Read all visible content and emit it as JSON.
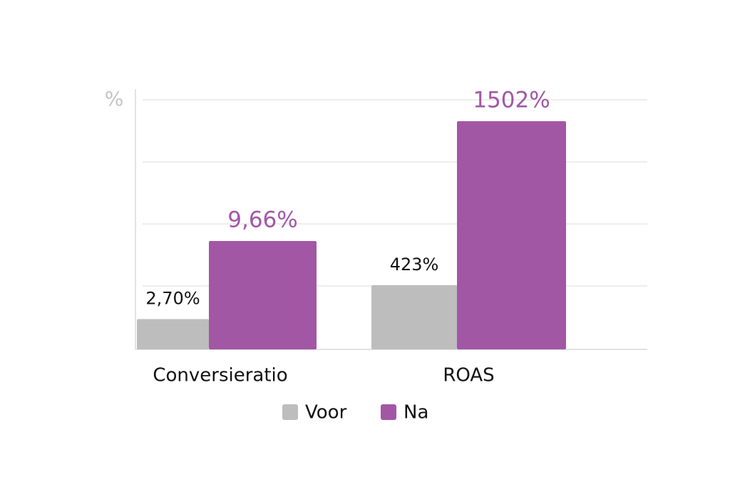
{
  "chart_data": {
    "type": "bar",
    "y_axis_label": "%",
    "categories": [
      "Conversieratio",
      "ROAS"
    ],
    "series": [
      {
        "name": "Voor",
        "color": "#bdbdbd",
        "values": [
          2.7,
          423
        ],
        "value_labels": [
          "2,70%",
          "423%"
        ]
      },
      {
        "name": "Na",
        "color": "#a257a5",
        "values": [
          9.66,
          1502
        ],
        "value_labels": [
          "9,66%",
          "1502%"
        ]
      }
    ],
    "grid": true
  }
}
